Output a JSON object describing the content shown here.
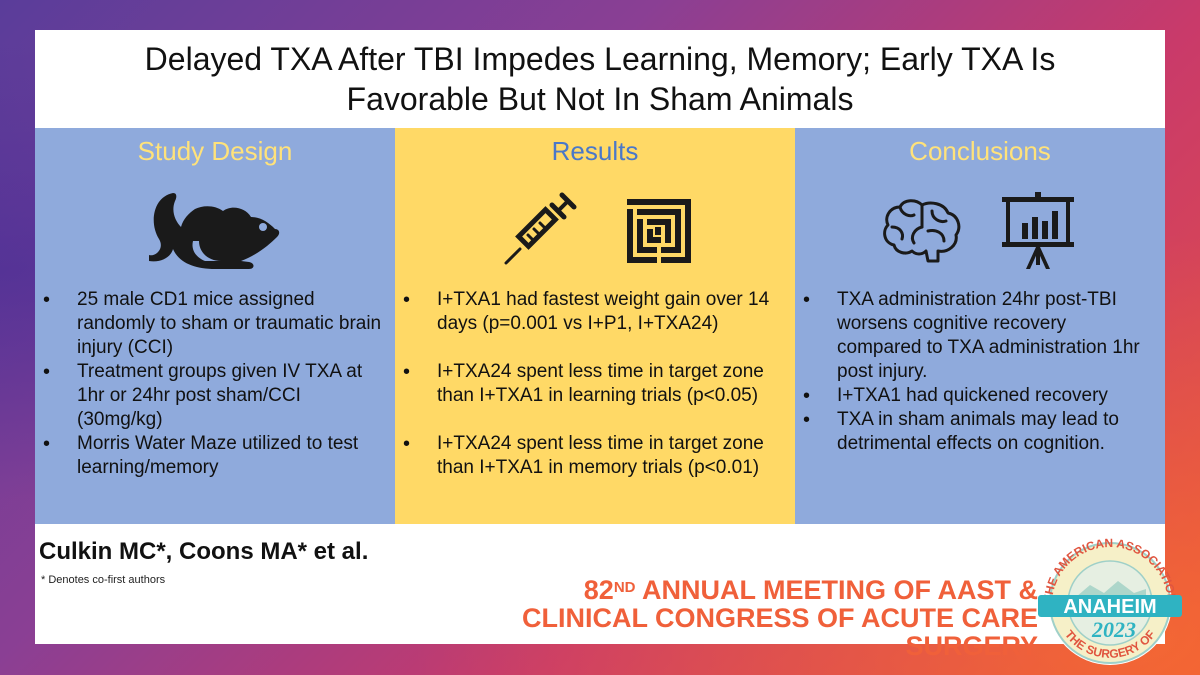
{
  "title": "Delayed TXA After TBI Impedes Learning, Memory; Early TXA Is\nFavorable But Not In Sham Animals",
  "columns": [
    {
      "heading": "Study Design",
      "icons": [
        "mouse-icon"
      ],
      "bullets": [
        "25 male CD1 mice assigned randomly to sham or traumatic brain injury (CCI)",
        "Treatment groups given IV TXA at 1hr or 24hr post sham/CCI (30mg/kg)",
        "Morris Water Maze utilized to test learning/memory"
      ]
    },
    {
      "heading": "Results",
      "icons": [
        "syringe-icon",
        "maze-icon"
      ],
      "bullets": [
        "I+TXA1 had fastest weight gain over 14 days (p=0.001 vs I+P1, I+TXA24)",
        "I+TXA24 spent less time in target zone than I+TXA1 in learning trials (p<0.05)",
        "I+TXA24 spent less time in target zone than I+TXA1 in memory trials (p<0.01)"
      ]
    },
    {
      "heading": "Conclusions",
      "icons": [
        "brain-icon",
        "presentation-chart-icon"
      ],
      "bullets": [
        "TXA administration 24hr post-TBI worsens cognitive recovery compared to TXA administration 1hr post injury.",
        "I+TXA1 had quickened recovery",
        "TXA in sham animals may lead to detrimental effects on cognition."
      ]
    }
  ],
  "authors": "Culkin MC*, Coons MA* et al.",
  "footnote": "* Denotes co-first authors",
  "meeting": {
    "number": "82",
    "ordinal_suffix": "ND",
    "line1_rest": " ANNUAL MEETING OF AAST &",
    "line2": "CLINICAL CONGRESS OF ACUTE CARE SURGERY"
  },
  "seal": {
    "top_text": "THE AMERICAN ASSOCIATION",
    "city": "ANAHEIM",
    "year": "2023",
    "bottom_text": "THE SURGERY OF"
  },
  "colors": {
    "column_blue": "#8faadc",
    "column_yellow": "#ffd966",
    "heading_yellow": "#ffe27a",
    "heading_blue": "#4a78c8",
    "meeting_orange": "#f0603a"
  }
}
